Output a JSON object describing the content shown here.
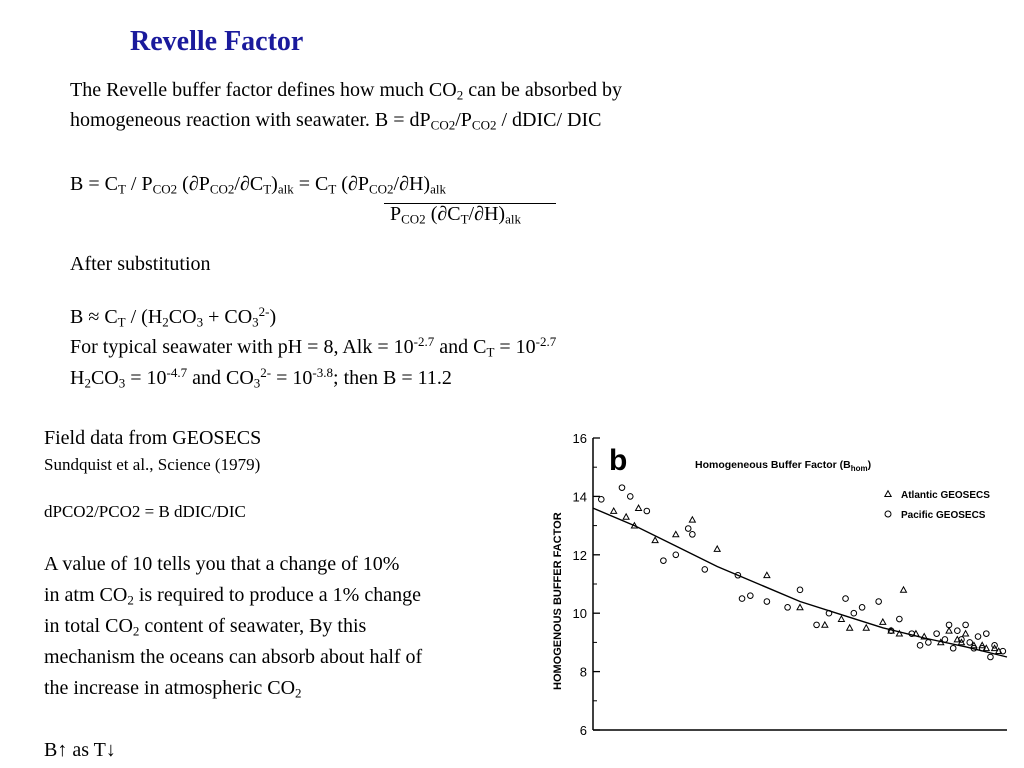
{
  "title": "Revelle Factor",
  "intro": {
    "line1_a": "The Revelle buffer factor defines how much CO",
    "line1_sub": "2",
    "line1_b": " can be absorbed by",
    "line2_a": "homogeneous reaction with seawater. B = dP",
    "line2_sub1": "CO2",
    "line2_b": "/P",
    "line2_sub2": "CO2",
    "line2_c": " / dDIC/ DIC"
  },
  "eq": {
    "b": "B = C",
    "t": "T",
    "slash_p": " / P",
    "co2": "CO2",
    "open": " (∂P",
    "co2b": "CO2",
    "slash_c": "/∂C",
    "t2": "T",
    "close": ")",
    "alk": "alk",
    "rhs_a": " = C",
    "rhs_t": "T",
    "rhs_b": " (∂P",
    "rhs_co2": "CO2",
    "rhs_c": "/∂H)",
    "rhs_alk": "alk",
    "den_p": "P",
    "den_co2": "CO2",
    "den_a": " (∂C",
    "den_t": "T",
    "den_b": "/∂H)",
    "den_alk": "alk"
  },
  "after": "After substitution",
  "approx": {
    "a": "B ≈ C",
    "t": "T",
    "b": " / (H",
    "s2": "2",
    "c": "CO",
    "s3": "3",
    "d": " + CO",
    "s3b": "3",
    "sup": "2-",
    "e": ")"
  },
  "typical": {
    "a": "For typical seawater with pH = 8, Alk = 10",
    "sup1": "-2.7",
    "b": " and C",
    "t": "T",
    "c": " = 10",
    "sup2": "-2.7"
  },
  "h2co3": {
    "a": "H",
    "s2": "2",
    "b": "CO",
    "s3": "3",
    "c": " = 10",
    "sup1": "-4.7",
    "d": " and CO",
    "s3b": "3",
    "sup2": "2-",
    "e": " = 10",
    "sup3": "-3.8",
    "f": "; then B  = 11.2"
  },
  "field": {
    "heading": "Field data from GEOSECS",
    "citation": "Sundquist et al., Science (1979)",
    "relation": "dPCO2/PCO2 = B dDIC/DIC"
  },
  "explain": {
    "l1": "A value of 10 tells you that a change of 10%",
    "l2_a": "in atm CO",
    "l2_sub": "2",
    "l2_b": " is required to produce a 1% change",
    "l3_a": "in total CO",
    "l3_sub": "2",
    "l3_b": " content of seawater, By this",
    "l4": "mechanism the oceans can absorb about half of",
    "l5_a": "the increase in atmospheric CO",
    "l5_sub": "2"
  },
  "final": "B↑ as T↓",
  "chart_data": {
    "type": "scatter",
    "panel_letter": "b",
    "title": "Homogeneous Buffer Factor (B",
    "title_sub": "hom",
    "title_close": ")",
    "ylabel": "HOMOGENOUS BUFFER FACTOR",
    "ylim": [
      6,
      16
    ],
    "yticks": [
      "6",
      "8",
      "10",
      "12",
      "14",
      "16"
    ],
    "legend": [
      {
        "name": "Atlantic GEOSECS",
        "marker": "triangle"
      },
      {
        "name": "Pacific GEOSECS",
        "marker": "circle"
      }
    ],
    "legend_position": "top-right",
    "xlim": [
      0,
      100
    ],
    "series": [
      {
        "name": "Atlantic GEOSECS",
        "marker": "triangle",
        "points": [
          [
            5,
            13.5
          ],
          [
            8,
            13.3
          ],
          [
            10,
            13.0
          ],
          [
            11,
            13.6
          ],
          [
            15,
            12.5
          ],
          [
            20,
            12.7
          ],
          [
            24,
            13.2
          ],
          [
            30,
            12.2
          ],
          [
            42,
            11.3
          ],
          [
            50,
            10.2
          ],
          [
            56,
            9.6
          ],
          [
            60,
            9.8
          ],
          [
            62,
            9.5
          ],
          [
            66,
            9.5
          ],
          [
            70,
            9.7
          ],
          [
            72,
            9.4
          ],
          [
            74,
            9.3
          ],
          [
            75,
            10.8
          ],
          [
            78,
            9.3
          ],
          [
            80,
            9.2
          ],
          [
            84,
            9.0
          ],
          [
            86,
            9.4
          ],
          [
            88,
            9.1
          ],
          [
            89,
            9.0
          ],
          [
            90,
            9.3
          ],
          [
            92,
            8.9
          ],
          [
            94,
            8.9
          ],
          [
            95,
            8.8
          ],
          [
            97,
            8.8
          ],
          [
            98,
            8.7
          ]
        ]
      },
      {
        "name": "Pacific GEOSECS",
        "marker": "circle",
        "points": [
          [
            2,
            13.9
          ],
          [
            7,
            14.3
          ],
          [
            9,
            14.0
          ],
          [
            13,
            13.5
          ],
          [
            17,
            11.8
          ],
          [
            20,
            12.0
          ],
          [
            23,
            12.9
          ],
          [
            24,
            12.7
          ],
          [
            27,
            11.5
          ],
          [
            35,
            11.3
          ],
          [
            36,
            10.5
          ],
          [
            38,
            10.6
          ],
          [
            42,
            10.4
          ],
          [
            47,
            10.2
          ],
          [
            50,
            10.8
          ],
          [
            54,
            9.6
          ],
          [
            57,
            10.0
          ],
          [
            61,
            10.5
          ],
          [
            63,
            10.0
          ],
          [
            65,
            10.2
          ],
          [
            69,
            10.4
          ],
          [
            72,
            9.4
          ],
          [
            74,
            9.8
          ],
          [
            77,
            9.3
          ],
          [
            79,
            8.9
          ],
          [
            81,
            9.0
          ],
          [
            83,
            9.3
          ],
          [
            85,
            9.1
          ],
          [
            86,
            9.6
          ],
          [
            87,
            8.8
          ],
          [
            88,
            9.4
          ],
          [
            89,
            9.1
          ],
          [
            90,
            9.6
          ],
          [
            91,
            9.0
          ],
          [
            92,
            8.8
          ],
          [
            93,
            9.2
          ],
          [
            94,
            8.8
          ],
          [
            95,
            9.3
          ],
          [
            96,
            8.5
          ],
          [
            97,
            8.9
          ],
          [
            99,
            8.7
          ]
        ]
      },
      {
        "name": "",
        "marker": "line",
        "points": [
          [
            0,
            13.6
          ],
          [
            10,
            13.0
          ],
          [
            20,
            12.3
          ],
          [
            30,
            11.6
          ],
          [
            40,
            11.0
          ],
          [
            50,
            10.4
          ],
          [
            60,
            9.95
          ],
          [
            70,
            9.5
          ],
          [
            80,
            9.15
          ],
          [
            90,
            8.85
          ],
          [
            100,
            8.5
          ]
        ]
      }
    ]
  }
}
